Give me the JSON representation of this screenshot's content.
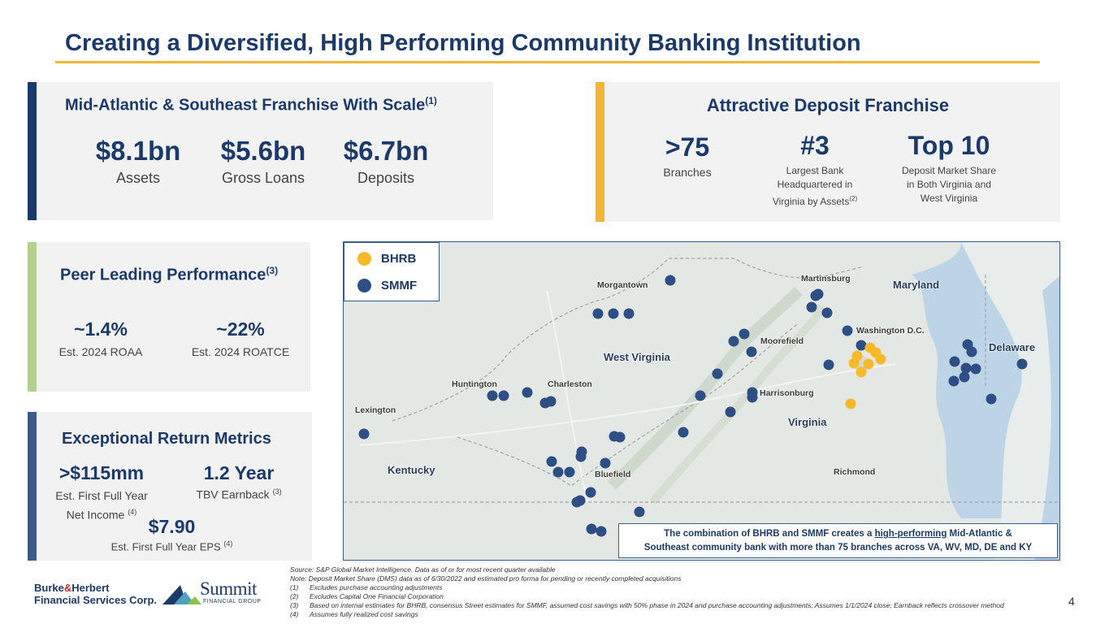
{
  "title": "Creating a Diversified, High Performing Community Banking Institution",
  "colors": {
    "navy": "#1b3a6b",
    "gold": "#f2b630",
    "green": "#b5cf8d",
    "slate": "#3c5a8a",
    "bhrb": "#f7b928",
    "smmf": "#2e4e86"
  },
  "franchise": {
    "title": "Mid-Atlantic & Southeast Franchise With Scale",
    "note": "(1)",
    "stats": [
      {
        "value": "$8.1bn",
        "label": "Assets"
      },
      {
        "value": "$5.6bn",
        "label": "Gross Loans"
      },
      {
        "value": "$6.7bn",
        "label": "Deposits"
      }
    ]
  },
  "deposit": {
    "title": "Attractive Deposit Franchise",
    "stats": [
      {
        "value": ">75",
        "label": "Branches"
      },
      {
        "value": "#3",
        "label_lines": [
          "Largest Bank",
          "Headquartered in",
          "Virginia by Assets"
        ],
        "note": "(2)"
      },
      {
        "value": "Top 10",
        "label_lines": [
          "Deposit Market Share",
          "in Both Virginia and",
          "West Virginia"
        ]
      }
    ]
  },
  "peer": {
    "title": "Peer Leading Performance",
    "note": "(3)",
    "stats": [
      {
        "value": "~1.4%",
        "label": "Est. 2024 ROAA"
      },
      {
        "value": "~22%",
        "label": "Est. 2024 ROATCE"
      }
    ]
  },
  "returns": {
    "title": "Exceptional Return Metrics",
    "income": {
      "value": ">$115mm",
      "line1": "Est. First Full Year",
      "line2": "Net Income",
      "note": "(4)"
    },
    "earnback": {
      "value": "1.2 Year",
      "label": "TBV Earnback",
      "note": "(3)"
    },
    "eps": {
      "value": "$7.90",
      "label": "Est. First Full Year EPS",
      "note": "(4)"
    }
  },
  "map": {
    "legend": [
      {
        "label": "BHRB",
        "color": "#f7b928"
      },
      {
        "label": "SMMF",
        "color": "#2e4e86"
      }
    ],
    "places": {
      "morgantown": "Morgantown",
      "martinsburg": "Martinsburg",
      "maryland": "Maryland",
      "washington": "Washington D.C.",
      "moorefield": "Moorefield",
      "west_virginia": "West Virginia",
      "delaware": "Delaware",
      "huntington": "Huntington",
      "charleston": "Charleston",
      "harrisonburg": "Harrisonburg",
      "lexington": "Lexington",
      "virginia": "Virginia",
      "kentucky": "Kentucky",
      "bluefield": "Bluefield",
      "richmond": "Richmond"
    },
    "callout": {
      "pre": "The combination of BHRB and SMMF creates a ",
      "highlight": "high-performing",
      "post": " Mid-Atlantic &",
      "line2": "Southeast community bank with more than 75 branches across VA, WV, MD, DE and KY"
    }
  },
  "footnotes": {
    "source": "Source: S&P Global Market Intelligence. Data as of or for most recent quarter available",
    "note": "Note: Deposit Market Share (DMS) data as of 6/30/2022 and estimated pro forma for pending or recently completed acquisitions",
    "items": [
      {
        "num": "(1)",
        "text": "Excludes purchase accounting adjustments"
      },
      {
        "num": "(2)",
        "text": "Excludes Capital One Financial Corporation"
      },
      {
        "num": "(3)",
        "text": "Based on internal estimates for BHRB, consensus Street estimates for SMMF, assumed cost savings with 50% phase in 2024 and purchase accounting adjustments; Assumes 1/1/2024 close; Earnback reflects crossover method"
      },
      {
        "num": "(4)",
        "text": "Assumes fully realized cost savings"
      }
    ]
  },
  "logos": {
    "bh_line1a": "Burke",
    "bh_amp": "&",
    "bh_line1b": "Herbert",
    "bh_line2": "Financial Services Corp.",
    "summit": "Summit",
    "summit_sub": "FINANCIAL GROUP"
  },
  "page_number": "4"
}
